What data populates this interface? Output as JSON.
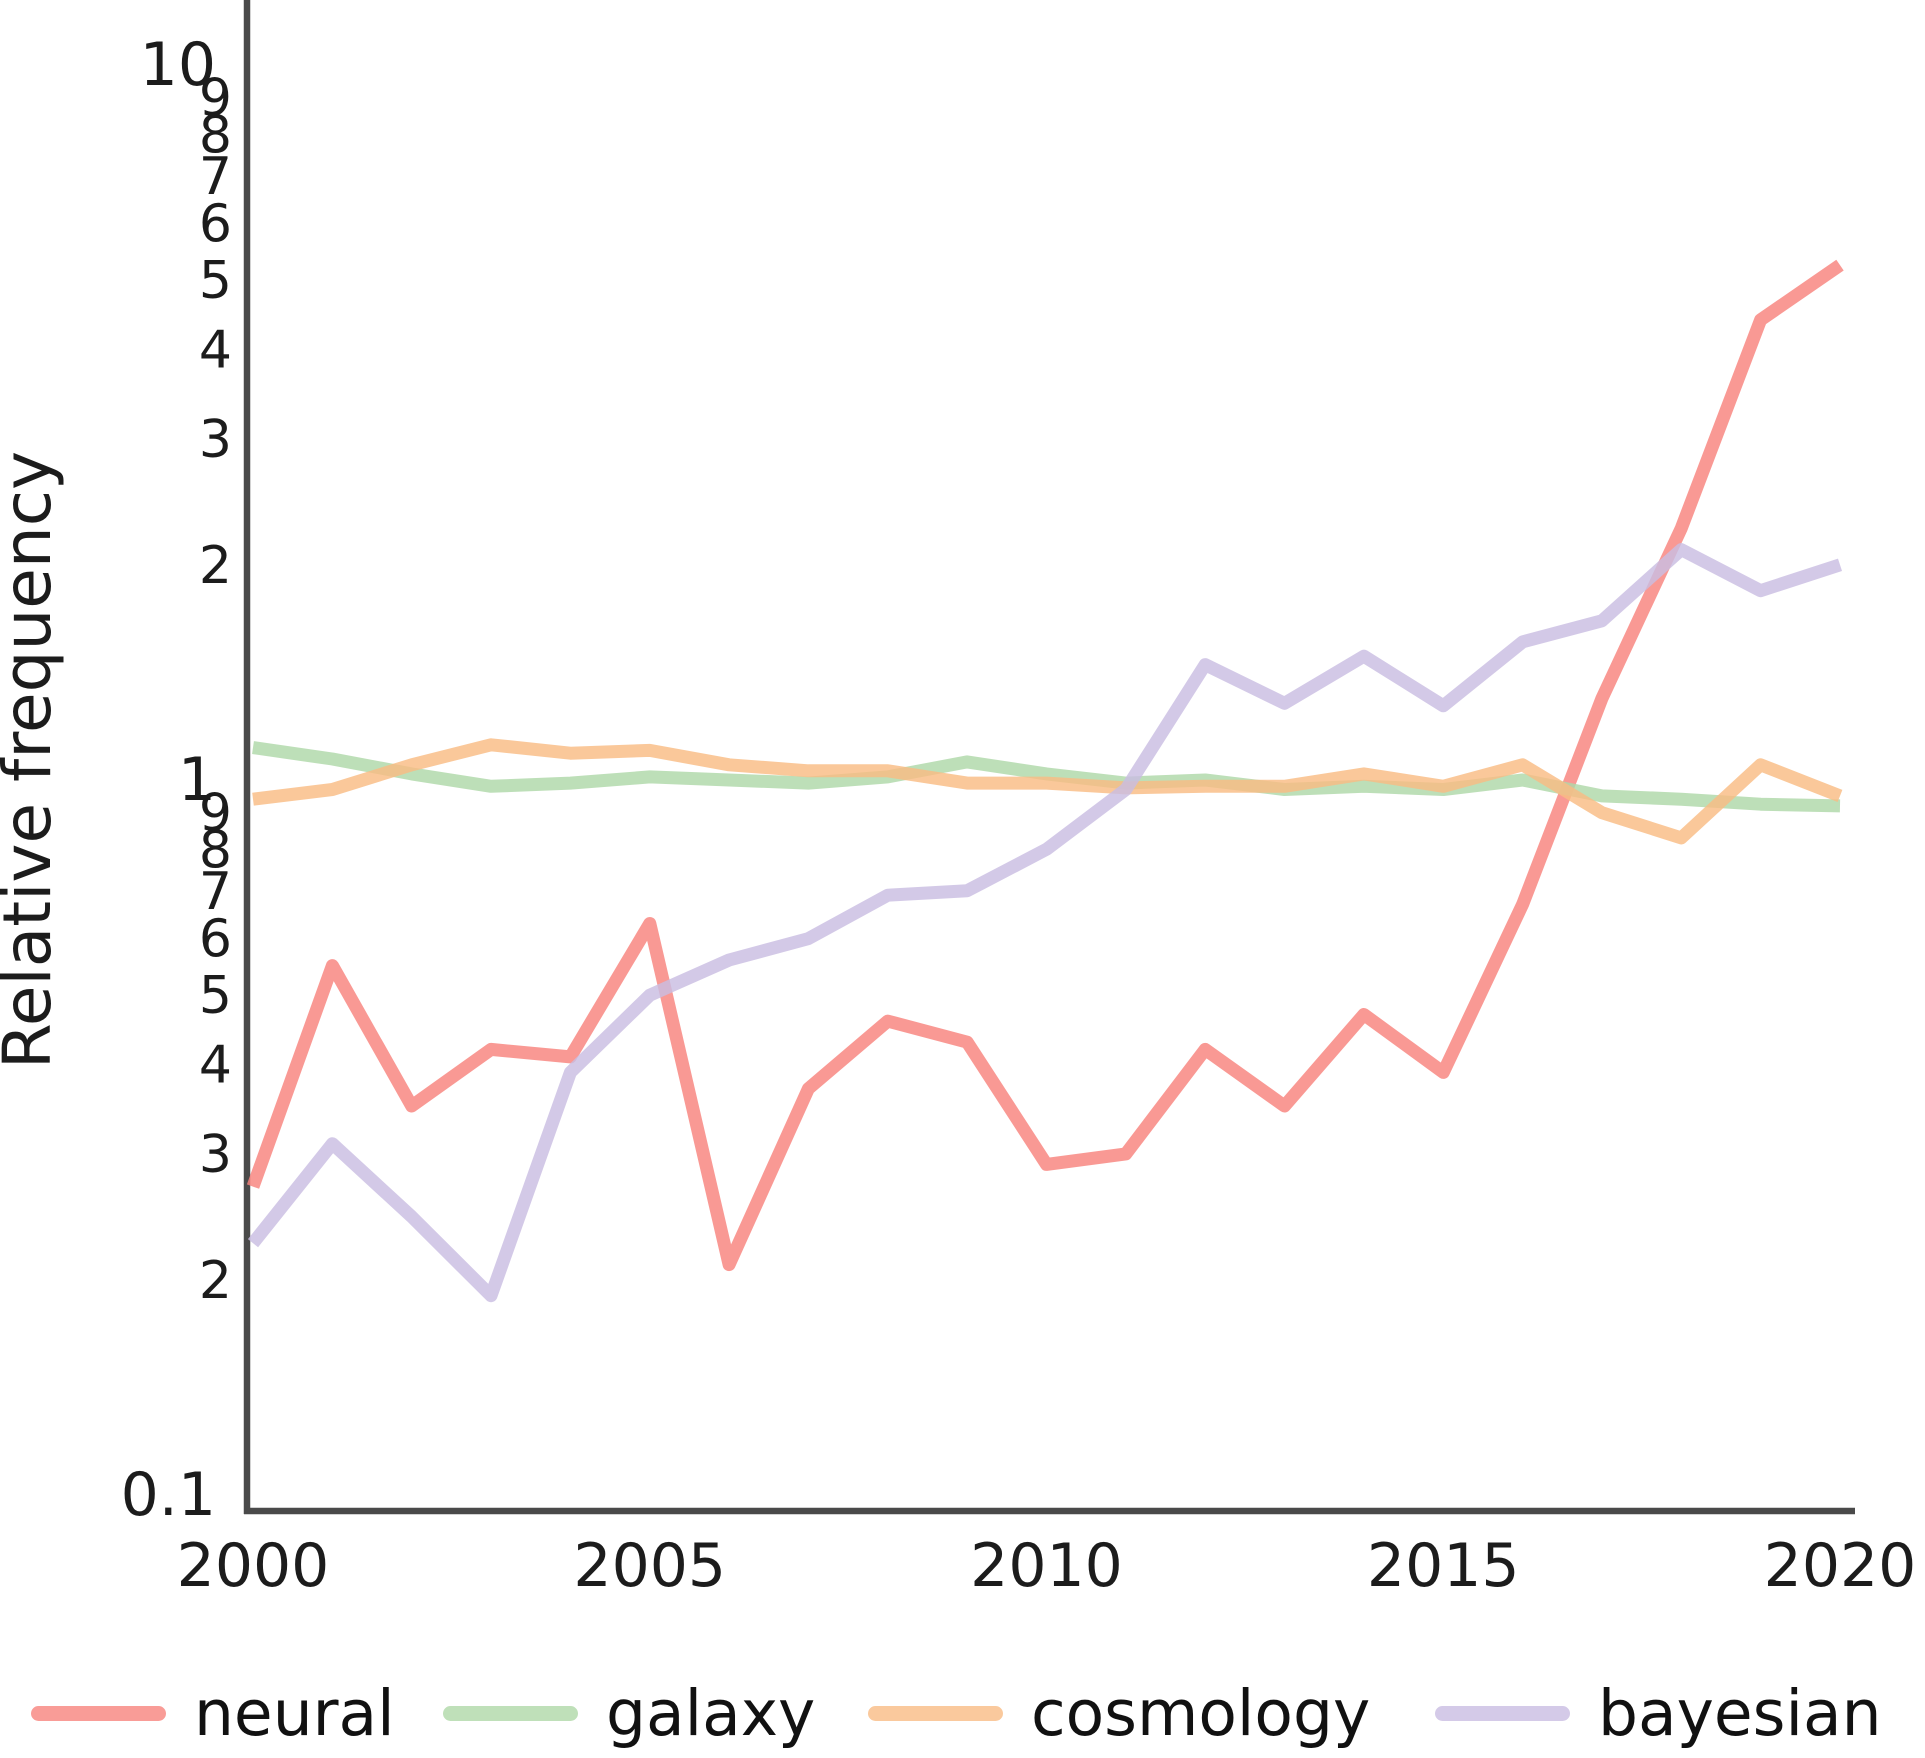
{
  "figure": {
    "ylabel": "Relative frequency",
    "background_color": "#ffffff",
    "axis_color": "#4a4a4a",
    "text_color": "#1c1c1c"
  },
  "chart_data": {
    "type": "line",
    "title": "",
    "xlabel": "",
    "ylabel": "Relative frequency",
    "yscale": "log",
    "ylim": [
      0.1,
      10
    ],
    "xlim": [
      2000,
      2020
    ],
    "grid": false,
    "legend_position": "bottom",
    "x": [
      2000,
      2001,
      2002,
      2003,
      2004,
      2005,
      2006,
      2007,
      2008,
      2009,
      2010,
      2011,
      2012,
      2013,
      2014,
      2015,
      2016,
      2017,
      2018,
      2019,
      2020
    ],
    "xticks": [
      {
        "v": 2000,
        "label": "2000"
      },
      {
        "v": 2005,
        "label": "2005"
      },
      {
        "v": 2010,
        "label": "2010"
      },
      {
        "v": 2015,
        "label": "2015"
      },
      {
        "v": 2020,
        "label": "2020"
      }
    ],
    "yticks_major": [
      {
        "v": 10,
        "label": "10"
      },
      {
        "v": 1,
        "label": "1"
      },
      {
        "v": 0.1,
        "label": "0.1"
      }
    ],
    "yticks_minor": [
      {
        "v": 9,
        "label": "9"
      },
      {
        "v": 8,
        "label": "8"
      },
      {
        "v": 7,
        "label": "7"
      },
      {
        "v": 6,
        "label": "6"
      },
      {
        "v": 5,
        "label": "5"
      },
      {
        "v": 4,
        "label": "4"
      },
      {
        "v": 3,
        "label": "3"
      },
      {
        "v": 2,
        "label": "2"
      },
      {
        "v": 0.9,
        "label": "9"
      },
      {
        "v": 0.8,
        "label": "8"
      },
      {
        "v": 0.7,
        "label": "7"
      },
      {
        "v": 0.6,
        "label": "6"
      },
      {
        "v": 0.5,
        "label": "5"
      },
      {
        "v": 0.4,
        "label": "4"
      },
      {
        "v": 0.3,
        "label": "3"
      },
      {
        "v": 0.2,
        "label": "2"
      }
    ],
    "series": [
      {
        "name": "neural",
        "color": "#F8837D",
        "values": [
          0.27,
          0.55,
          0.35,
          0.42,
          0.41,
          0.63,
          0.21,
          0.37,
          0.46,
          0.43,
          0.29,
          0.3,
          0.42,
          0.35,
          0.47,
          0.39,
          0.67,
          1.3,
          2.25,
          4.4,
          5.25
        ]
      },
      {
        "name": "galaxy",
        "color": "#AFD8A8",
        "values": [
          1.11,
          1.07,
          1.02,
          0.98,
          0.99,
          1.01,
          1.0,
          0.99,
          1.01,
          1.06,
          1.02,
          0.99,
          1.0,
          0.97,
          0.98,
          0.97,
          1.0,
          0.95,
          0.94,
          0.925,
          0.92
        ]
      },
      {
        "name": "cosmology",
        "color": "#F9BC84",
        "values": [
          0.94,
          0.97,
          1.05,
          1.12,
          1.09,
          1.1,
          1.05,
          1.03,
          1.03,
          0.99,
          0.99,
          0.975,
          0.98,
          0.98,
          1.02,
          0.98,
          1.05,
          0.9,
          0.83,
          1.05,
          0.95
        ]
      },
      {
        "name": "bayesian",
        "color": "#C9BDE2",
        "values": [
          0.225,
          0.31,
          0.245,
          0.19,
          0.39,
          0.5,
          0.56,
          0.6,
          0.69,
          0.7,
          0.8,
          0.97,
          1.45,
          1.28,
          1.49,
          1.27,
          1.56,
          1.67,
          2.1,
          1.84,
          2.0
        ]
      }
    ]
  }
}
